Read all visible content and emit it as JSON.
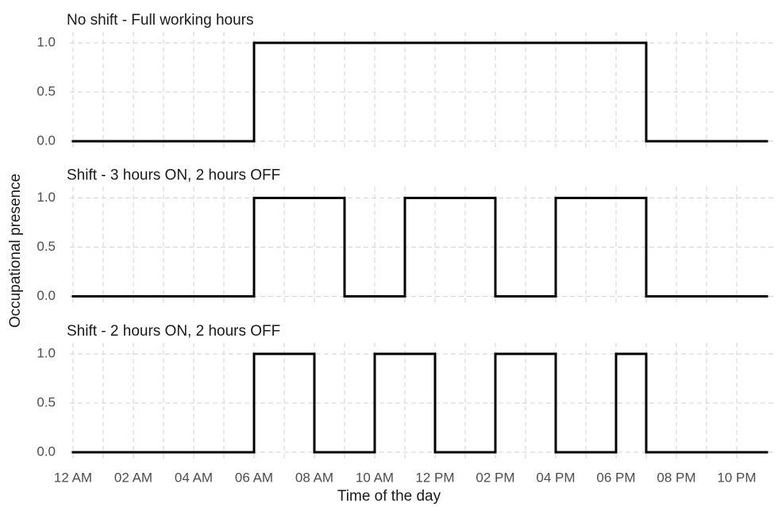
{
  "y_label": "Occupational presence",
  "x_label": "Time of the day",
  "chart_data": [
    {
      "type": "step",
      "title": "No shift - Full working hours",
      "x": [
        0,
        6,
        19
      ],
      "values": [
        0,
        1,
        0
      ],
      "color": "#000000",
      "xlim": [
        0,
        23
      ],
      "ylim": [
        -0.05,
        1.05
      ],
      "yticks": [
        {
          "value": 0,
          "label": "0.0"
        },
        {
          "value": 0.5,
          "label": "0.5"
        },
        {
          "value": 1,
          "label": "1.0"
        }
      ],
      "xticks": [
        0,
        2,
        4,
        6,
        8,
        10,
        12,
        14,
        16,
        18,
        20,
        22
      ],
      "grid": true
    },
    {
      "type": "step",
      "title": "Shift - 3 hours ON, 2 hours OFF",
      "x": [
        0,
        6,
        9,
        11,
        14,
        16,
        19
      ],
      "values": [
        0,
        1,
        0,
        1,
        0,
        1,
        0
      ],
      "color": "#000000",
      "xlim": [
        0,
        23
      ],
      "ylim": [
        -0.05,
        1.05
      ],
      "yticks": [
        {
          "value": 0,
          "label": "0.0"
        },
        {
          "value": 0.5,
          "label": "0.5"
        },
        {
          "value": 1,
          "label": "1.0"
        }
      ],
      "xticks": [
        0,
        2,
        4,
        6,
        8,
        10,
        12,
        14,
        16,
        18,
        20,
        22
      ],
      "grid": true
    },
    {
      "type": "step",
      "title": "Shift - 2 hours ON, 2 hours OFF",
      "x": [
        0,
        6,
        8,
        10,
        12,
        14,
        16,
        18,
        19
      ],
      "values": [
        0,
        1,
        0,
        1,
        0,
        1,
        0,
        1,
        0
      ],
      "color": "#000000",
      "xlim": [
        0,
        23
      ],
      "ylim": [
        -0.05,
        1.05
      ],
      "yticks": [
        {
          "value": 0,
          "label": "0.0"
        },
        {
          "value": 0.5,
          "label": "0.5"
        },
        {
          "value": 1,
          "label": "1.0"
        }
      ],
      "xticks": [
        {
          "value": 0,
          "label": "12 AM"
        },
        {
          "value": 2,
          "label": "02 AM"
        },
        {
          "value": 4,
          "label": "04 AM"
        },
        {
          "value": 6,
          "label": "06 AM"
        },
        {
          "value": 8,
          "label": "08 AM"
        },
        {
          "value": 10,
          "label": "10 AM"
        },
        {
          "value": 12,
          "label": "12 PM"
        },
        {
          "value": 14,
          "label": "02 PM"
        },
        {
          "value": 16,
          "label": "04 PM"
        },
        {
          "value": 18,
          "label": "06 PM"
        },
        {
          "value": 20,
          "label": "08 PM"
        },
        {
          "value": 22,
          "label": "10 PM"
        }
      ],
      "grid": true
    }
  ]
}
